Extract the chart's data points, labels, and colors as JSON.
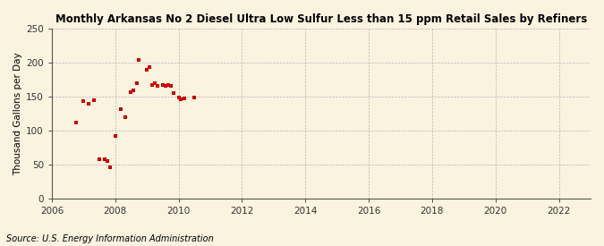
{
  "title": "Monthly Arkansas No 2 Diesel Ultra Low Sulfur Less than 15 ppm Retail Sales by Refiners",
  "ylabel": "Thousand Gallons per Day",
  "source": "Source: U.S. Energy Information Administration",
  "background_color": "#faf3e0",
  "plot_bg_color": "#faf3e0",
  "point_color": "#cc0000",
  "xlim": [
    2006,
    2023
  ],
  "ylim": [
    0,
    250
  ],
  "yticks": [
    0,
    50,
    100,
    150,
    200,
    250
  ],
  "xticks": [
    2006,
    2008,
    2010,
    2012,
    2014,
    2016,
    2018,
    2020,
    2022
  ],
  "title_fontsize": 8.5,
  "ylabel_fontsize": 7.5,
  "tick_fontsize": 7.5,
  "source_fontsize": 7,
  "data_x": [
    2006.75,
    2007.0,
    2007.17,
    2007.33,
    2007.5,
    2007.67,
    2007.75,
    2007.83,
    2008.0,
    2008.17,
    2008.33,
    2008.5,
    2008.58,
    2008.67,
    2008.75,
    2009.0,
    2009.08,
    2009.17,
    2009.25,
    2009.33,
    2009.5,
    2009.58,
    2009.67,
    2009.75,
    2009.83,
    2010.0,
    2010.08,
    2010.17,
    2010.5
  ],
  "data_y": [
    111,
    143,
    139,
    145,
    57,
    57,
    55,
    46,
    92,
    131,
    120,
    157,
    159,
    170,
    204,
    189,
    193,
    167,
    170,
    165,
    167,
    165,
    167,
    165,
    155,
    148,
    146,
    147,
    148
  ]
}
